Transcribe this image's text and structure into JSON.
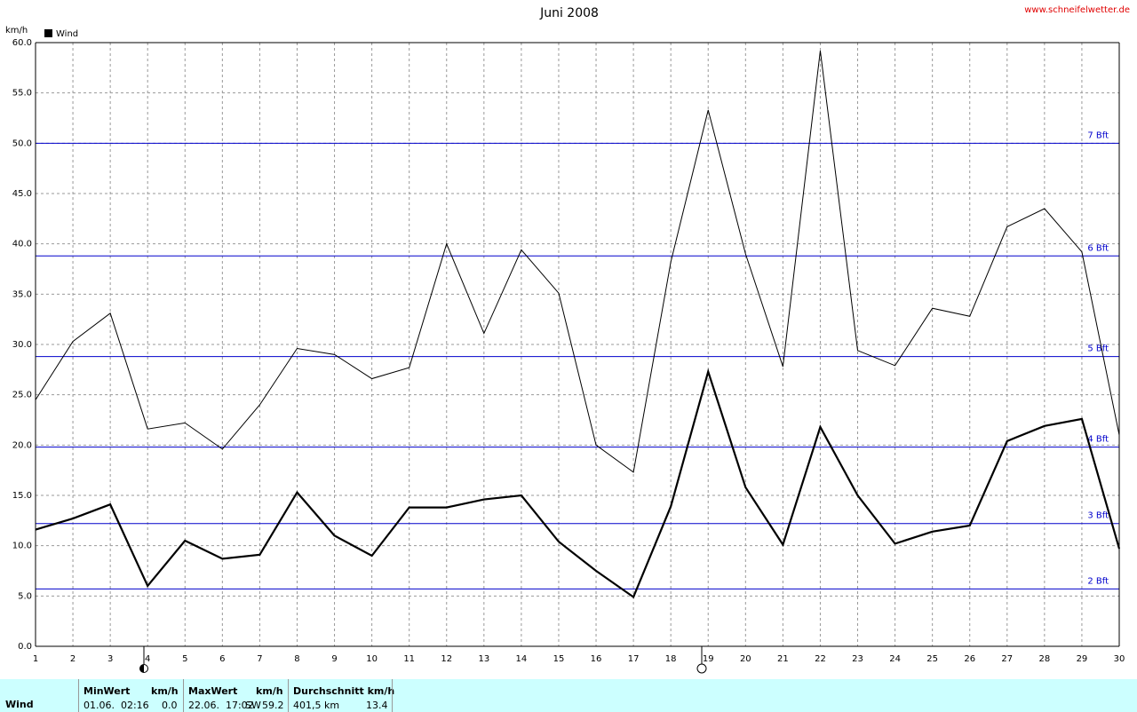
{
  "chart_data": {
    "type": "line",
    "title": "Juni 2008",
    "source": "www.schneifelwetter.de",
    "y_unit": "km/h",
    "x": [
      1,
      2,
      3,
      4,
      5,
      6,
      7,
      8,
      9,
      10,
      11,
      12,
      13,
      14,
      15,
      16,
      17,
      18,
      19,
      20,
      21,
      22,
      23,
      24,
      25,
      26,
      27,
      28,
      29,
      30
    ],
    "xlim": [
      1,
      30
    ],
    "xticks": [
      1,
      2,
      3,
      4,
      5,
      6,
      7,
      8,
      9,
      10,
      11,
      12,
      13,
      14,
      15,
      16,
      17,
      18,
      19,
      20,
      21,
      22,
      23,
      24,
      25,
      26,
      27,
      28,
      29,
      30
    ],
    "ylim": [
      0,
      60
    ],
    "yticks": [
      {
        "value": 0,
        "label": "0.0"
      },
      {
        "value": 5,
        "label": "5.0"
      },
      {
        "value": 10,
        "label": "10.0"
      },
      {
        "value": 15,
        "label": "15.0"
      },
      {
        "value": 20,
        "label": "20.0"
      },
      {
        "value": 25,
        "label": "25.0"
      },
      {
        "value": 30,
        "label": "30.0"
      },
      {
        "value": 35,
        "label": "35.0"
      },
      {
        "value": 40,
        "label": "40.0"
      },
      {
        "value": 45,
        "label": "45.0"
      },
      {
        "value": 50,
        "label": "50.0"
      },
      {
        "value": 55,
        "label": "55.0"
      },
      {
        "value": 60,
        "label": "60.0"
      }
    ],
    "grid": true,
    "reference_lines": [
      {
        "value": 50,
        "label": "7 Bft"
      },
      {
        "value": 38.8,
        "label": "6 Bft"
      },
      {
        "value": 28.8,
        "label": "5 Bft"
      },
      {
        "value": 19.8,
        "label": "4 Bft"
      },
      {
        "value": 12.2,
        "label": "3 Bft"
      },
      {
        "value": 5.7,
        "label": "2 Bft"
      }
    ],
    "reference_color": "#0000cc",
    "series": [
      {
        "name": "Wind",
        "color": "#000000",
        "width": 2.2,
        "values": [
          11.6,
          12.7,
          14.1,
          6.0,
          10.5,
          8.7,
          9.1,
          15.3,
          11.0,
          9.0,
          13.8,
          13.8,
          14.6,
          15.0,
          10.4,
          7.5,
          4.9,
          13.9,
          27.3,
          15.8,
          10.1,
          21.8,
          15.0,
          10.2,
          11.4,
          12.0,
          20.4,
          21.9,
          22.6,
          9.7
        ]
      },
      {
        "color": "#000000",
        "width": 1,
        "values": [
          24.5,
          30.3,
          33.1,
          21.6,
          22.2,
          19.6,
          24.0,
          29.6,
          29.0,
          26.6,
          27.7,
          40.0,
          31.1,
          39.4,
          35.1,
          20.0,
          17.3,
          38.2,
          53.3,
          39.0,
          27.8,
          59.2,
          29.4,
          27.9,
          33.6,
          32.8,
          41.7,
          43.5,
          39.2,
          21.0
        ]
      }
    ]
  },
  "footer": {
    "row_label": "Wind",
    "min_header": "MinWert",
    "min_unit": "km/h",
    "min_time": "01.06.  02:16",
    "min_value": "0.0",
    "max_header": "MaxWert",
    "max_unit": "km/h",
    "max_time": "22.06.  17:02",
    "max_dir": "SW",
    "max_value": "59.2",
    "avg_header": "Durchschnitt km/h",
    "avg_total": "401,5 km",
    "avg_value": "13.4"
  }
}
